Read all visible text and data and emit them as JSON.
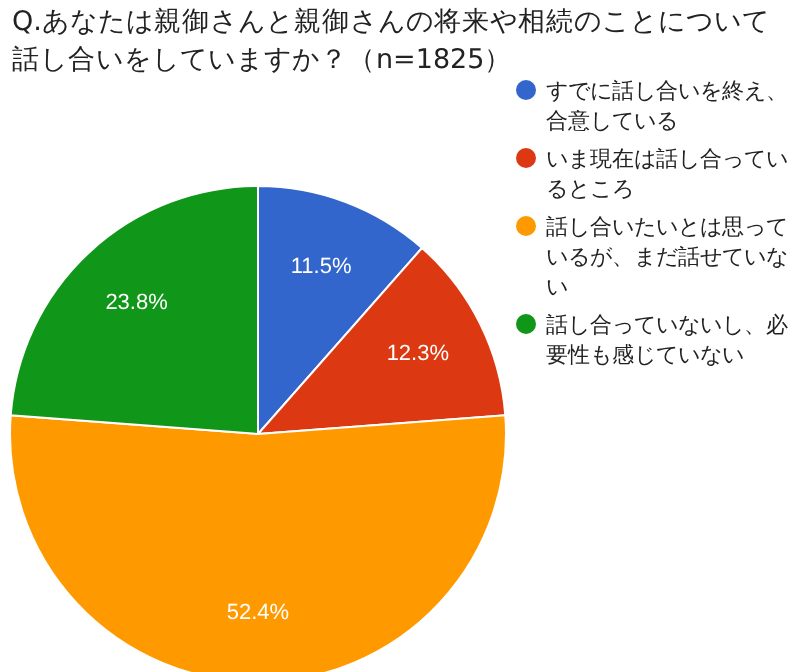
{
  "chart_data": {
    "type": "pie",
    "title": "Q.あなたは親御さんと親御さんの将来や相続のことについて話し合いをしていますか？（n=1825）",
    "categories": [
      "すでに話し合いを終え、合意している",
      "いま現在は話し合っているところ",
      "話し合いたいとは思っているが、まだ話せていない",
      "話し合っていないし、必要性も感じていない"
    ],
    "values": [
      11.5,
      12.3,
      52.4,
      23.8
    ],
    "colors": [
      "#3366cc",
      "#dc3912",
      "#ff9900",
      "#109618"
    ],
    "value_labels": [
      "11.5%",
      "12.3%",
      "52.4%",
      "23.8%"
    ],
    "legend": "right"
  }
}
